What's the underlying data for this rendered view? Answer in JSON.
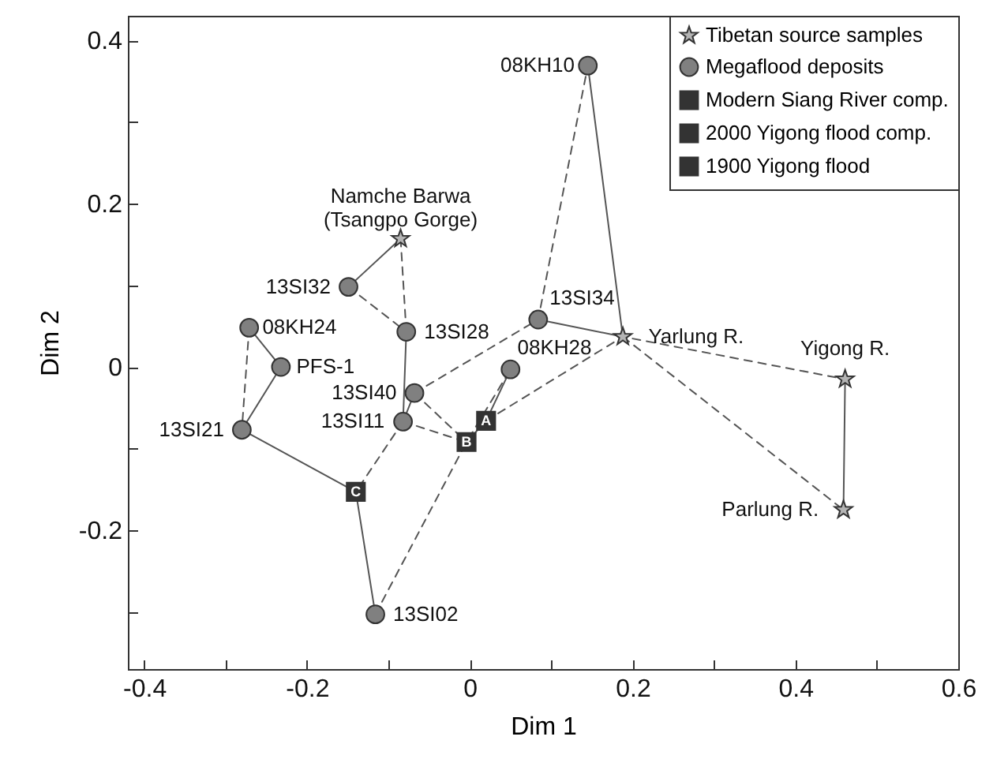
{
  "chart_data": {
    "type": "scatter",
    "xlabel": "Dim 1",
    "ylabel": "Dim 2",
    "xlim": [
      -0.42,
      0.6
    ],
    "ylim": [
      -0.37,
      0.43
    ],
    "xticks": [
      -0.4,
      {
        "value": -0.3,
        "label": null
      },
      -0.2,
      {
        "value": -0.1,
        "label": null
      },
      0,
      {
        "value": 0.1,
        "label": null
      },
      0.2,
      {
        "value": 0.3,
        "label": null
      },
      0.4,
      {
        "value": 0.5,
        "label": null
      },
      0.6
    ],
    "yticks": [
      {
        "value": -0.3,
        "label": null
      },
      -0.2,
      {
        "value": -0.1,
        "label": null
      },
      0,
      {
        "value": 0.1,
        "label": null
      },
      0.2,
      {
        "value": 0.3,
        "label": null
      },
      0.4
    ],
    "legend": "top right",
    "series": [
      {
        "type": "line",
        "color": "#555555",
        "line_style": "solid",
        "x": [
          -0.085,
          -0.149
        ],
        "values": [
          0.157,
          0.098
        ]
      },
      {
        "type": "line",
        "color": "#555555",
        "line_style": "dashed",
        "x": [
          -0.085,
          -0.078
        ],
        "values": [
          0.157,
          0.043
        ]
      },
      {
        "type": "line",
        "color": "#555555",
        "line_style": "dashed",
        "x": [
          -0.149,
          -0.078
        ],
        "values": [
          0.098,
          0.043
        ]
      },
      {
        "type": "line",
        "color": "#555555",
        "line_style": "solid",
        "x": [
          -0.271,
          -0.232,
          -0.28,
          -0.14,
          -0.116
        ],
        "values": [
          0.048,
          0,
          -0.077,
          -0.153,
          -0.303
        ]
      },
      {
        "type": "line",
        "color": "#555555",
        "line_style": "dashed",
        "x": [
          -0.271,
          -0.28
        ],
        "values": [
          0.048,
          -0.077
        ]
      },
      {
        "type": "line",
        "color": "#555555",
        "line_style": "solid",
        "x": [
          -0.078,
          -0.082,
          -0.068
        ],
        "values": [
          0.043,
          -0.067,
          -0.032
        ]
      },
      {
        "type": "line",
        "color": "#555555",
        "line_style": "dashed",
        "x": [
          -0.068,
          0.084,
          0.145
        ],
        "values": [
          -0.032,
          0.058,
          0.369
        ]
      },
      {
        "type": "line",
        "color": "#555555",
        "line_style": "solid",
        "x": [
          0.084,
          0.188,
          0.145
        ],
        "values": [
          0.058,
          0.037,
          0.369
        ]
      },
      {
        "type": "line",
        "color": "#555555",
        "line_style": "dashed",
        "x": [
          -0.068,
          -0.004
        ],
        "values": [
          -0.032,
          -0.092
        ]
      },
      {
        "type": "line",
        "color": "#555555",
        "line_style": "dashed",
        "x": [
          -0.082,
          -0.004
        ],
        "values": [
          -0.067,
          -0.092
        ]
      },
      {
        "type": "line",
        "color": "#555555",
        "line_style": "dashed",
        "x": [
          -0.082,
          -0.14
        ],
        "values": [
          -0.067,
          -0.153
        ]
      },
      {
        "type": "line",
        "color": "#555555",
        "line_style": "dashed",
        "x": [
          -0.116,
          -0.004,
          0.05
        ],
        "values": [
          -0.303,
          -0.092,
          -0.003
        ]
      },
      {
        "type": "line",
        "color": "#555555",
        "line_style": "solid",
        "x": [
          -0.004,
          0.02,
          0.05
        ],
        "values": [
          -0.092,
          -0.066,
          -0.003
        ]
      },
      {
        "type": "line",
        "color": "#555555",
        "line_style": "dashed",
        "x": [
          0.02,
          0.188,
          0.461
        ],
        "values": [
          -0.066,
          0.037,
          -0.015
        ]
      },
      {
        "type": "line",
        "color": "#555555",
        "line_style": "dashed",
        "x": [
          0.188,
          0.459
        ],
        "values": [
          0.037,
          -0.175
        ]
      },
      {
        "type": "line",
        "color": "#555555",
        "line_style": "solid",
        "x": [
          0.461,
          0.459
        ],
        "values": [
          -0.015,
          -0.175
        ]
      },
      {
        "name": "Tibetan source samples",
        "color": "#b4b4b4",
        "marker": "star",
        "x": [
          -0.085,
          0.188,
          0.461,
          0.459
        ],
        "values": [
          0.157,
          0.037,
          -0.015,
          -0.175
        ]
      },
      {
        "name": "Megaflood deposits",
        "color": "#808080",
        "marker": "circle",
        "x": [
          0.145,
          -0.149,
          -0.078,
          -0.271,
          -0.232,
          0.084,
          -0.068,
          0.05,
          -0.082,
          -0.28,
          -0.116
        ],
        "values": [
          0.369,
          0.098,
          0.043,
          0.048,
          0,
          0.058,
          -0.032,
          -0.003,
          -0.067,
          -0.077,
          -0.303
        ]
      },
      {
        "name": "Modern Siang River comp.",
        "color": "#333333",
        "marker": "square",
        "x": [
          0.02
        ],
        "values": [
          -0.066
        ],
        "value_labels": [
          "A"
        ]
      },
      {
        "name": "2000 Yigong flood comp.",
        "color": "#333333",
        "marker": "square",
        "x": [
          -0.004
        ],
        "values": [
          -0.092
        ],
        "value_labels": [
          "B"
        ]
      },
      {
        "name": "1900 Yigong flood",
        "color": "#333333",
        "marker": "square",
        "x": [
          -0.14
        ],
        "values": [
          -0.153
        ],
        "value_labels": [
          "C"
        ]
      }
    ],
    "annotations": [
      {
        "text": "Namche Barwa\n(Tsangpo Gorge)",
        "x": -0.085,
        "y": 0.157
      },
      {
        "text": "08KH10",
        "x": 0.145,
        "y": 0.369
      },
      {
        "text": "13SI32",
        "x": -0.149,
        "y": 0.098
      },
      {
        "text": "08KH24",
        "x": -0.271,
        "y": 0.048
      },
      {
        "text": "13SI28",
        "x": -0.078,
        "y": 0.043
      },
      {
        "text": "PFS-1",
        "x": -0.232,
        "y": 0
      },
      {
        "text": "13SI34",
        "x": 0.084,
        "y": 0.058
      },
      {
        "text": "Yarlung R.",
        "x": 0.188,
        "y": 0.037
      },
      {
        "text": "13SI40",
        "x": -0.068,
        "y": -0.032
      },
      {
        "text": "08KH28",
        "x": 0.05,
        "y": -0.003
      },
      {
        "text": "13SI11",
        "x": -0.082,
        "y": -0.067
      },
      {
        "text": "13SI21",
        "x": -0.28,
        "y": -0.077
      },
      {
        "text": "13SI02",
        "x": -0.116,
        "y": -0.303
      },
      {
        "text": "Yigong R.",
        "x": 0.461,
        "y": -0.015
      },
      {
        "text": "Parlung R.",
        "x": 0.459,
        "y": -0.175
      }
    ]
  }
}
